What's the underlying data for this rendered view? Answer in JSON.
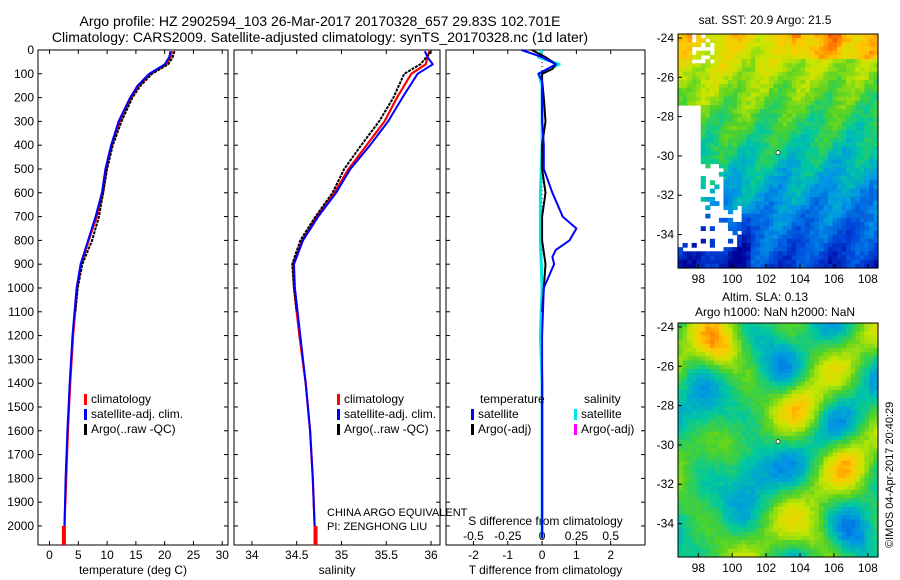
{
  "header": {
    "line1": "Argo profile: HZ 2902594_103 26-Mar-2017 20170328_657 29.83S 102.701E",
    "line2": "Climatology: CARS2009. Satellite-adjusted climatology: synTS_20170328.nc (1d later)"
  },
  "pi_text": {
    "line1": "CHINA ARGO EQUIVALENT",
    "line2": "PI: ZENGHONG LIU"
  },
  "credit": "©IMOS 04-Apr-2017 20:40:29",
  "colors": {
    "climatology": "#ff0000",
    "satellite": "#0000ff",
    "argo": "#000000",
    "sal_satellite": "#00e5e5",
    "sal_argo": "#ff00ff"
  },
  "chart_data": [
    {
      "type": "line",
      "panel": "temperature",
      "xlabel": "temperature (deg C)",
      "ylabel": "",
      "xlim": [
        -2,
        31
      ],
      "ylim": [
        2080,
        0
      ],
      "xticks": [
        0,
        5,
        10,
        15,
        20,
        25,
        30
      ],
      "xtick_labels": [
        "0",
        "5",
        "10",
        "15",
        "20",
        "25",
        "30"
      ],
      "yticks": [
        0,
        100,
        200,
        300,
        400,
        500,
        600,
        700,
        800,
        900,
        1000,
        1100,
        1200,
        1300,
        1400,
        1500,
        1600,
        1700,
        1800,
        1900,
        2000
      ],
      "ytick_labels": [
        "0",
        "100",
        "200",
        "300",
        "400",
        "500",
        "600",
        "700",
        "800",
        "900",
        "1000",
        "1100",
        "1200",
        "1300",
        "1400",
        "1500",
        "1600",
        "1700",
        "1800",
        "1900",
        "2000"
      ],
      "legend": [
        "climatology",
        "satellite-adj. clim.",
        "Argo(..raw -QC)"
      ],
      "series": [
        {
          "name": "climatology",
          "depth": [
            5,
            30,
            60,
            100,
            150,
            200,
            300,
            400,
            500,
            600,
            700,
            800,
            900,
            1000,
            1200,
            1400,
            1600,
            1800,
            2000,
            2050
          ],
          "values": [
            21.3,
            21.0,
            20.3,
            17.5,
            15.5,
            14.2,
            12.2,
            10.8,
            9.9,
            9.3,
            8.2,
            6.8,
            5.5,
            4.8,
            4.1,
            3.6,
            3.2,
            2.9,
            2.6,
            2.5
          ]
        },
        {
          "name": "satellite-adj. clim.",
          "depth": [
            5,
            30,
            60,
            100,
            150,
            200,
            300,
            400,
            500,
            600,
            700,
            800,
            900,
            1000,
            1200,
            1400,
            1600,
            1800,
            2000,
            2050
          ],
          "values": [
            21.0,
            20.8,
            20.0,
            17.3,
            15.3,
            14.0,
            12.0,
            10.7,
            9.7,
            9.1,
            8.0,
            6.7,
            5.4,
            4.7,
            4.0,
            3.5,
            3.1,
            2.8,
            2.6,
            2.5
          ]
        },
        {
          "name": "Argo(..raw -QC)",
          "depth": [
            5,
            30,
            60,
            100,
            150,
            200,
            300,
            400,
            500,
            600,
            700,
            800,
            900,
            1000,
            1100
          ],
          "values": [
            21.7,
            21.4,
            20.6,
            17.8,
            15.8,
            14.4,
            12.5,
            11.0,
            10.0,
            9.3,
            8.6,
            7.4,
            5.7,
            4.9,
            4.5
          ]
        }
      ]
    },
    {
      "type": "line",
      "panel": "salinity",
      "xlabel": "salinity",
      "xlim": [
        33.8,
        36.1
      ],
      "ylim": [
        2080,
        0
      ],
      "xticks": [
        34,
        34.5,
        35,
        35.5,
        36
      ],
      "xtick_labels": [
        "34",
        "34.5",
        "35",
        "35.5",
        "36"
      ],
      "legend": [
        "climatology",
        "satellite-adj. clim.",
        "Argo(..raw -QC)"
      ],
      "series": [
        {
          "name": "climatology",
          "depth": [
            5,
            30,
            60,
            100,
            200,
            300,
            400,
            500,
            600,
            700,
            800,
            900,
            1000,
            1200,
            1400,
            1600,
            1800,
            2000,
            2050
          ],
          "values": [
            35.98,
            35.96,
            35.94,
            35.78,
            35.62,
            35.48,
            35.28,
            35.08,
            34.92,
            34.72,
            34.56,
            34.46,
            34.47,
            34.53,
            34.6,
            34.65,
            34.68,
            34.7,
            34.71
          ]
        },
        {
          "name": "satellite-adj. clim.",
          "depth": [
            5,
            30,
            60,
            100,
            200,
            300,
            400,
            500,
            600,
            700,
            800,
            900,
            1000,
            1200,
            1400,
            1600,
            1800,
            2000,
            2050
          ],
          "values": [
            35.93,
            35.96,
            36.02,
            35.85,
            35.68,
            35.52,
            35.32,
            35.1,
            34.94,
            34.74,
            34.57,
            34.47,
            34.48,
            34.54,
            34.6,
            34.65,
            34.68,
            34.7,
            34.7
          ]
        },
        {
          "name": "Argo(..raw -QC)",
          "depth": [
            5,
            30,
            60,
            100,
            200,
            300,
            400,
            500,
            600,
            700,
            800,
            900,
            1000,
            1100
          ],
          "values": [
            36.0,
            35.95,
            35.88,
            35.7,
            35.58,
            35.42,
            35.22,
            35.03,
            34.9,
            34.71,
            34.54,
            34.45,
            34.47,
            34.5
          ]
        }
      ]
    },
    {
      "type": "line",
      "panel": "difference",
      "xlabel": "T difference from climatology",
      "xlabel_top": "S difference from climatology",
      "xlim": [
        -2.8,
        3.0
      ],
      "ylim": [
        2080,
        0
      ],
      "xticks": [
        -2,
        -1,
        0,
        1,
        2
      ],
      "xtick_labels": [
        "-2",
        "-1",
        "0",
        "1",
        "2"
      ],
      "s_xticks": [
        -2,
        -1,
        0,
        1,
        2
      ],
      "s_xtick_labels": [
        "-0.5",
        "-0.25",
        "0",
        "0.25",
        "0.5"
      ],
      "legend_temperature_title": "temperature",
      "legend_salinity_title": "salinity",
      "legend": [
        "satellite",
        "Argo(-adj)",
        "satellite",
        "Argo(-adj)"
      ],
      "series": [
        {
          "name": "T satellite",
          "depth": [
            0,
            30,
            60,
            100,
            130,
            200,
            300,
            400,
            500,
            600,
            700,
            750,
            800,
            840,
            870,
            900,
            950,
            1000,
            1200,
            1500,
            2000,
            2050
          ],
          "values": [
            -0.6,
            0.0,
            0.4,
            -0.1,
            0.0,
            0.0,
            0.0,
            0.05,
            0.05,
            0.3,
            0.6,
            1.0,
            0.8,
            0.4,
            0.3,
            0.35,
            0.2,
            0.05,
            0.0,
            0.0,
            0.0,
            0.0
          ]
        },
        {
          "name": "T Argo(-adj)",
          "depth": [
            0,
            30,
            60,
            80,
            100,
            130,
            200,
            300,
            400,
            500,
            600,
            700,
            800,
            900,
            1000,
            1100
          ],
          "values": [
            -0.3,
            0.1,
            0.4,
            0.3,
            0.0,
            0.0,
            0.05,
            0.1,
            0.0,
            0.0,
            0.1,
            0.0,
            0.0,
            0.1,
            0.05,
            0.0
          ]
        },
        {
          "name": "S satellite",
          "depth": [
            0,
            30,
            60,
            100,
            150,
            200,
            400,
            600,
            800,
            1000,
            1200,
            1400,
            1600,
            1800,
            2000,
            2050
          ],
          "values": [
            0.0,
            -0.1,
            0.5,
            -0.1,
            0.0,
            0.0,
            0.0,
            -0.05,
            -0.05,
            0.0,
            -0.05,
            0.0,
            0.0,
            0.0,
            0.0,
            0.0
          ]
        },
        {
          "name": "S Argo(-adj)",
          "depth": [],
          "values": []
        }
      ]
    },
    {
      "type": "heatmap",
      "panel": "sst-map",
      "title": "sat. SST: 20.9  Argo: 21.5",
      "xlim": [
        96.8,
        108.6
      ],
      "ylim": [
        -35.7,
        -23.8
      ],
      "xticks": [
        98,
        100,
        102,
        104,
        106,
        108
      ],
      "xtick_labels": [
        "98",
        "100",
        "102",
        "104",
        "106",
        "108"
      ],
      "yticks": [
        -24,
        -26,
        -28,
        -30,
        -32,
        -34
      ],
      "ytick_labels": [
        "-24",
        "-26",
        "-28",
        "-30",
        "-32",
        "-34"
      ],
      "argo_position": [
        102.701,
        -29.83
      ]
    },
    {
      "type": "heatmap",
      "panel": "sla-map",
      "title": "Altim. SLA: 0.13",
      "subtitle": "Argo h1000: NaN h2000: NaN",
      "xlim": [
        96.8,
        108.6
      ],
      "ylim": [
        -35.7,
        -23.8
      ],
      "xticks": [
        98,
        100,
        102,
        104,
        106,
        108
      ],
      "xtick_labels": [
        "98",
        "100",
        "102",
        "104",
        "106",
        "108"
      ],
      "yticks": [
        -24,
        -26,
        -28,
        -30,
        -32,
        -34
      ],
      "ytick_labels": [
        "-24",
        "-26",
        "-28",
        "-30",
        "-32",
        "-34"
      ],
      "argo_position": [
        102.701,
        -29.83
      ]
    }
  ]
}
